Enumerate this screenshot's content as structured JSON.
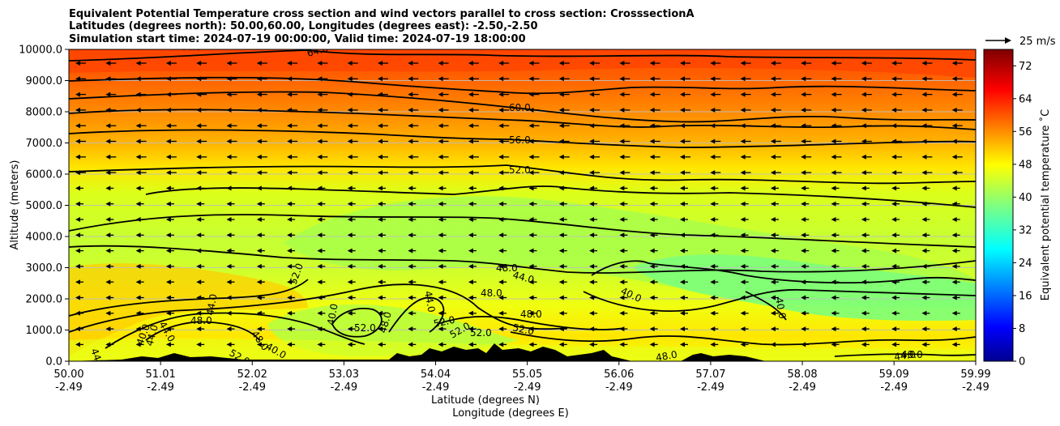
{
  "chart_data": {
    "type": "heatmap",
    "title_lines": [
      "Equivalent Potential Temperature cross section and wind vectors parallel to cross section: CrosssectionA",
      "Latitudes (degrees north): 50.00,60.00, Longitudes (degrees east): -2.50,-2.50",
      "Simulation start time: 2024-07-19 00:00:00, Valid time: 2024-07-19 18:00:00"
    ],
    "ylabel": "Altitude (meters)",
    "xlabel_line1": "Latitude (degrees N)",
    "xlabel_line2": "Longitude (degrees E)",
    "yticks": [
      "0.0",
      "1000.0",
      "2000.0",
      "3000.0",
      "4000.0",
      "5000.0",
      "6000.0",
      "7000.0",
      "8000.0",
      "9000.0",
      "10000.0"
    ],
    "ylim": [
      0,
      10000
    ],
    "xlim": [
      50.0,
      59.99
    ],
    "xticks_lat": [
      "50.00",
      "51.01",
      "52.02",
      "53.03",
      "54.04",
      "55.05",
      "56.06",
      "57.07",
      "58.08",
      "59.09",
      "59.99"
    ],
    "xticks_lon": [
      "-2.49",
      "-2.49",
      "-2.49",
      "-2.49",
      "-2.49",
      "-2.49",
      "-2.49",
      "-2.49",
      "-2.49",
      "-2.49",
      "-2.49"
    ],
    "grid": "horizontal",
    "colorbar": {
      "label": "Equivalent potential temperature ˚C",
      "ticks": [
        "0",
        "8",
        "16",
        "24",
        "32",
        "40",
        "48",
        "56",
        "64",
        "72"
      ],
      "range": [
        0,
        76
      ],
      "colormap": "jet"
    },
    "wind_key": {
      "label": "25 m/s",
      "speed": 25
    },
    "contour_labels": [
      "64.0",
      "60.0",
      "56.0",
      "52.0",
      "48.0",
      "44.0",
      "40.0",
      "52.0",
      "48.0",
      "48.0",
      "52.0",
      "52.0",
      "52.0",
      "52.0",
      "52.0",
      "48.0",
      "44.0",
      "40.0",
      "48.0",
      "44.0",
      "44.0",
      "40.0",
      "44.0",
      "48.0",
      "40.0",
      "44.0",
      "52.0",
      "44.0",
      "48.0",
      "40.0",
      "44.0",
      "48.0"
    ],
    "theta_e_profile": {
      "altitudes_m": [
        0,
        1000,
        2000,
        3000,
        4000,
        5000,
        6000,
        7000,
        8000,
        9000,
        10000
      ],
      "approx_values_C": [
        50,
        48,
        49,
        46,
        45,
        46,
        52,
        56,
        60,
        64,
        66
      ]
    },
    "terrain_m": [
      {
        "lat": 50.9,
        "h": 50
      },
      {
        "lat": 51.3,
        "h": 100
      },
      {
        "lat": 51.7,
        "h": 70
      },
      {
        "lat": 54.1,
        "h": 180
      },
      {
        "lat": 54.4,
        "h": 250
      },
      {
        "lat": 54.7,
        "h": 330
      },
      {
        "lat": 55.0,
        "h": 260
      },
      {
        "lat": 55.5,
        "h": 330
      },
      {
        "lat": 55.9,
        "h": 260
      },
      {
        "lat": 56.9,
        "h": 150
      },
      {
        "lat": 57.2,
        "h": 210
      },
      {
        "lat": 57.5,
        "h": 120
      }
    ],
    "wind_vectors": {
      "direction": "southward (towards 50N)",
      "approx_speed_ms": [
        6,
        8,
        10
      ]
    }
  }
}
